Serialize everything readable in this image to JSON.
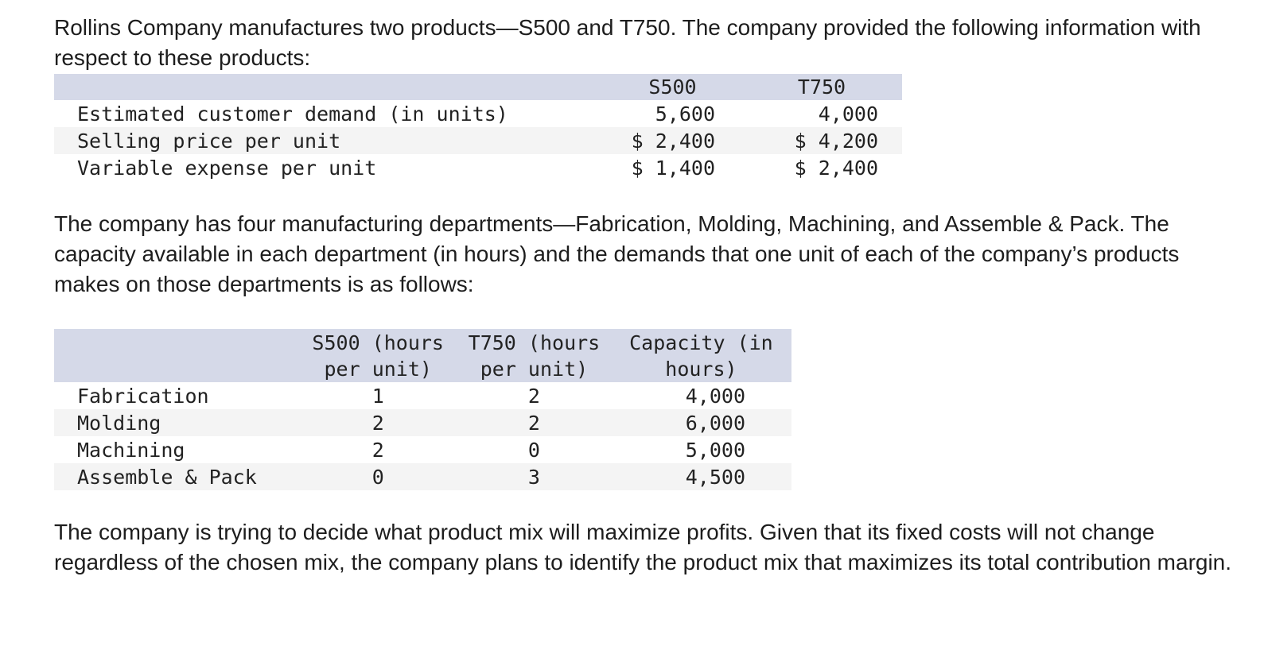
{
  "intro": "Rollins Company manufactures two products—S500 and T750. The company provided the following information with respect to these products:",
  "products_table": {
    "headers": [
      "",
      "S500",
      "T750"
    ],
    "rows": [
      {
        "label": "Estimated customer demand (in units)",
        "s500": "5,600",
        "t750": "4,000"
      },
      {
        "label": "Selling price per unit",
        "s500": "$ 2,400",
        "t750": "$ 4,200"
      },
      {
        "label": "Variable expense per unit",
        "s500": "$ 1,400",
        "t750": "$ 2,400"
      }
    ]
  },
  "departments_paragraph": "The company has four manufacturing departments—Fabrication, Molding, Machining, and Assemble & Pack. The capacity available in each department (in hours) and the demands that one unit of each of the company’s products makes on those departments is as follows:",
  "departments_table": {
    "headers": {
      "s500_line1": "S500 (hours",
      "s500_line2": "per unit)",
      "t750_line1": "T750 (hours",
      "t750_line2": "per unit)",
      "capacity_line1": "Capacity (in",
      "capacity_line2": "hours)"
    },
    "rows": [
      {
        "label": "Fabrication",
        "s500": "1",
        "t750": "2",
        "capacity": "4,000"
      },
      {
        "label": "Molding",
        "s500": "2",
        "t750": "2",
        "capacity": "6,000"
      },
      {
        "label": "Machining",
        "s500": "2",
        "t750": "0",
        "capacity": "5,000"
      },
      {
        "label": "Assemble & Pack",
        "s500": "0",
        "t750": "3",
        "capacity": "4,500"
      }
    ]
  },
  "conclusion": "The company is trying to decide what product mix will maximize profits. Given that its fixed costs will not change regardless of the chosen mix, the company plans to identify the product mix that maximizes its total contribution margin."
}
